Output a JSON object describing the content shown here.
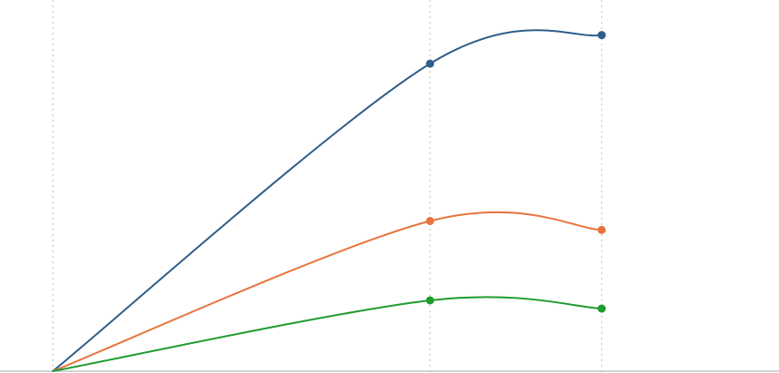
{
  "chart_data": {
    "type": "line",
    "title": "",
    "xlabel": "",
    "ylabel": "",
    "x_gridlines": [
      0,
      1,
      1.455
    ],
    "xlim": [
      -0.14,
      1.925
    ],
    "ylim": [
      0,
      1.0
    ],
    "grid": "vertical",
    "legend": "none",
    "series": [
      {
        "color": "#2f5f8a",
        "x": [
          0,
          1,
          1.455
        ],
        "values": [
          0,
          0.86,
          0.94
        ],
        "marker_index": [
          1,
          2
        ]
      },
      {
        "color": "#e8743b",
        "x": [
          0,
          1,
          1.455
        ],
        "values": [
          0,
          0.42,
          0.395
        ],
        "marker_index": [
          1,
          2
        ]
      },
      {
        "color": "#1f9b2e",
        "x": [
          0,
          1,
          1.455
        ],
        "values": [
          0,
          0.198,
          0.175
        ],
        "marker_index": [
          1,
          2
        ]
      }
    ]
  }
}
